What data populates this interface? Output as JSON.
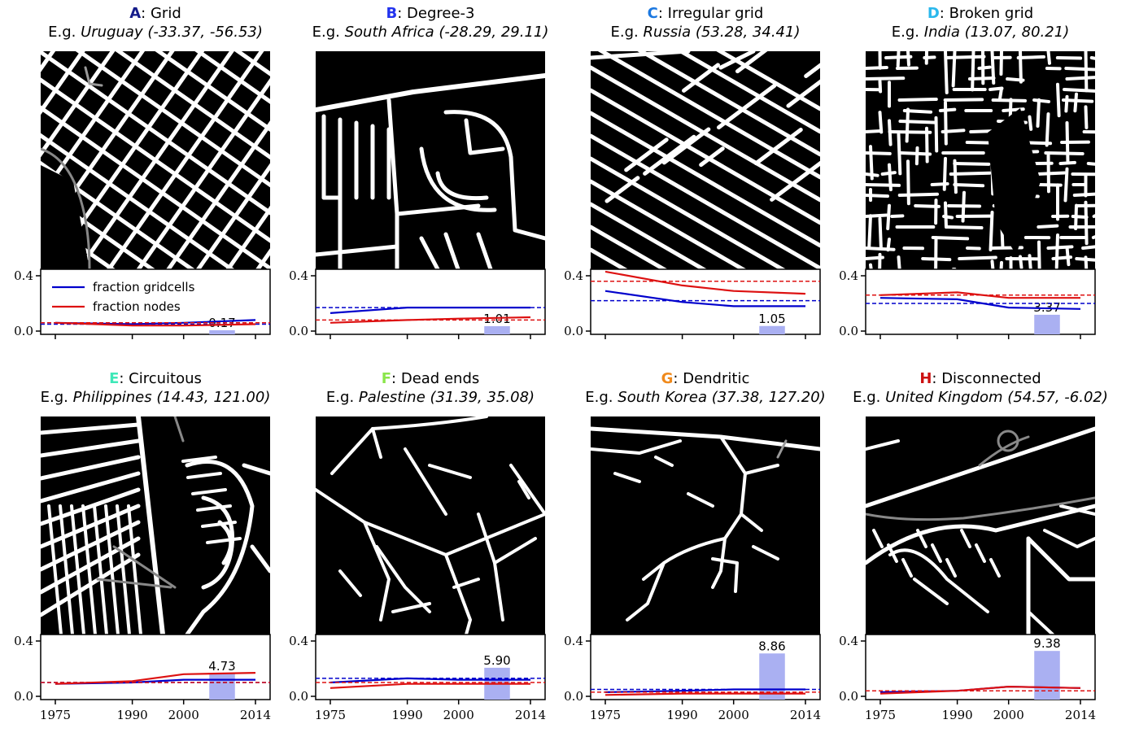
{
  "chart_data": {
    "type": "line",
    "legend": {
      "location": "upper-left",
      "in_panel": "A",
      "entries": [
        {
          "name": "fraction gridcells",
          "color": "#0000cc"
        },
        {
          "name": "fraction nodes",
          "color": "#dd1111"
        }
      ]
    },
    "x_ticks": [
      "1975",
      "1990",
      "2000",
      "2014"
    ],
    "x_range": [
      1975,
      2014
    ],
    "ylim": [
      0,
      0.4
    ],
    "y_ticks": [
      "0.0",
      "0.4"
    ],
    "grid": false,
    "panels": [
      {
        "letter": "A",
        "letter_color": "#151c8a",
        "name": "Grid",
        "eg_prefix": "E.g.",
        "example": "Uruguay (-33.37, -56.53)",
        "map_style": "grid",
        "x": [
          1975,
          1990,
          2000,
          2014
        ],
        "series": [
          {
            "name": "fraction gridcells",
            "values": [
              0.06,
              0.05,
              0.06,
              0.08
            ],
            "mean": 0.05
          },
          {
            "name": "fraction nodes",
            "values": [
              0.06,
              0.04,
              0.04,
              0.05
            ],
            "mean": 0.06
          }
        ],
        "bar": {
          "value": 0.17,
          "label": "0.17"
        },
        "show_x_labels": false
      },
      {
        "letter": "B",
        "letter_color": "#2233ee",
        "name": "Degree-3",
        "eg_prefix": "E.g.",
        "example": "South Africa (-28.29, 29.11)",
        "map_style": "curved",
        "x": [
          1975,
          1990,
          2000,
          2014
        ],
        "series": [
          {
            "name": "fraction gridcells",
            "values": [
              0.13,
              0.17,
              0.17,
              0.17
            ],
            "mean": 0.17
          },
          {
            "name": "fraction nodes",
            "values": [
              0.06,
              0.08,
              0.09,
              0.1
            ],
            "mean": 0.08
          }
        ],
        "bar": {
          "value": 1.01,
          "label": "1.01"
        },
        "show_x_labels": false
      },
      {
        "letter": "C",
        "letter_color": "#1c78e0",
        "name": "Irregular grid",
        "eg_prefix": "E.g.",
        "example": "Russia (53.28, 34.41)",
        "map_style": "irregular",
        "x": [
          1975,
          1990,
          2000,
          2014
        ],
        "series": [
          {
            "name": "fraction gridcells",
            "values": [
              0.29,
              0.21,
              0.18,
              0.18
            ],
            "mean": 0.22
          },
          {
            "name": "fraction nodes",
            "values": [
              0.43,
              0.33,
              0.29,
              0.27
            ],
            "mean": 0.36
          }
        ],
        "bar": {
          "value": 1.05,
          "label": "1.05"
        },
        "show_x_labels": false
      },
      {
        "letter": "D",
        "letter_color": "#2ab8ec",
        "name": "Broken grid",
        "eg_prefix": "E.g.",
        "example": "India (13.07, 80.21)",
        "map_style": "broken",
        "x": [
          1975,
          1990,
          2000,
          2014
        ],
        "series": [
          {
            "name": "fraction gridcells",
            "values": [
              0.24,
              0.23,
              0.17,
              0.16
            ],
            "mean": 0.2
          },
          {
            "name": "fraction nodes",
            "values": [
              0.26,
              0.28,
              0.24,
              0.24
            ],
            "mean": 0.26
          }
        ],
        "bar": {
          "value": 3.37,
          "label": "3.37"
        },
        "show_x_labels": false
      },
      {
        "letter": "E",
        "letter_color": "#3ee8b8",
        "name": "Circuitous",
        "eg_prefix": "E.g.",
        "example": "Philippines (14.43, 121.00)",
        "map_style": "circuitous",
        "x": [
          1975,
          1990,
          2000,
          2014
        ],
        "series": [
          {
            "name": "fraction gridcells",
            "values": [
              0.09,
              0.1,
              0.12,
              0.12
            ],
            "mean": 0.1
          },
          {
            "name": "fraction nodes",
            "values": [
              0.09,
              0.11,
              0.16,
              0.17
            ],
            "mean": 0.1
          }
        ],
        "bar": {
          "value": 4.73,
          "label": "4.73"
        },
        "show_x_labels": true
      },
      {
        "letter": "F",
        "letter_color": "#8ae64a",
        "name": "Dead ends",
        "eg_prefix": "E.g.",
        "example": "Palestine (31.39, 35.08)",
        "map_style": "deadends",
        "x": [
          1975,
          1990,
          2000,
          2014
        ],
        "series": [
          {
            "name": "fraction gridcells",
            "values": [
              0.1,
              0.13,
              0.12,
              0.12
            ],
            "mean": 0.13
          },
          {
            "name": "fraction nodes",
            "values": [
              0.06,
              0.09,
              0.09,
              0.09
            ],
            "mean": 0.1
          }
        ],
        "bar": {
          "value": 5.9,
          "label": "5.90"
        },
        "show_x_labels": true
      },
      {
        "letter": "G",
        "letter_color": "#f08a1c",
        "name": "Dendritic",
        "eg_prefix": "E.g.",
        "example": "South Korea (37.38, 127.20)",
        "map_style": "dendritic",
        "x": [
          1975,
          1990,
          2000,
          2014
        ],
        "series": [
          {
            "name": "fraction gridcells",
            "values": [
              0.03,
              0.04,
              0.05,
              0.05
            ],
            "mean": 0.05
          },
          {
            "name": "fraction nodes",
            "values": [
              0.01,
              0.02,
              0.02,
              0.02
            ],
            "mean": 0.03
          }
        ],
        "bar": {
          "value": 8.86,
          "label": "8.86"
        },
        "show_x_labels": true
      },
      {
        "letter": "H",
        "letter_color": "#cc1111",
        "name": "Disconnected",
        "eg_prefix": "E.g.",
        "example": "United Kingdom (54.57, -6.02)",
        "map_style": "disconnected",
        "x": [
          1975,
          1990,
          2000,
          2014
        ],
        "series": [
          {
            "name": "fraction gridcells",
            "values": [
              0.03,
              0.04,
              0.07,
              0.06
            ],
            "mean": 0.04
          },
          {
            "name": "fraction nodes",
            "values": [
              0.02,
              0.04,
              0.07,
              0.06
            ],
            "mean": 0.04
          }
        ],
        "bar": {
          "value": 9.38,
          "label": "9.38"
        },
        "show_x_labels": true
      }
    ]
  }
}
